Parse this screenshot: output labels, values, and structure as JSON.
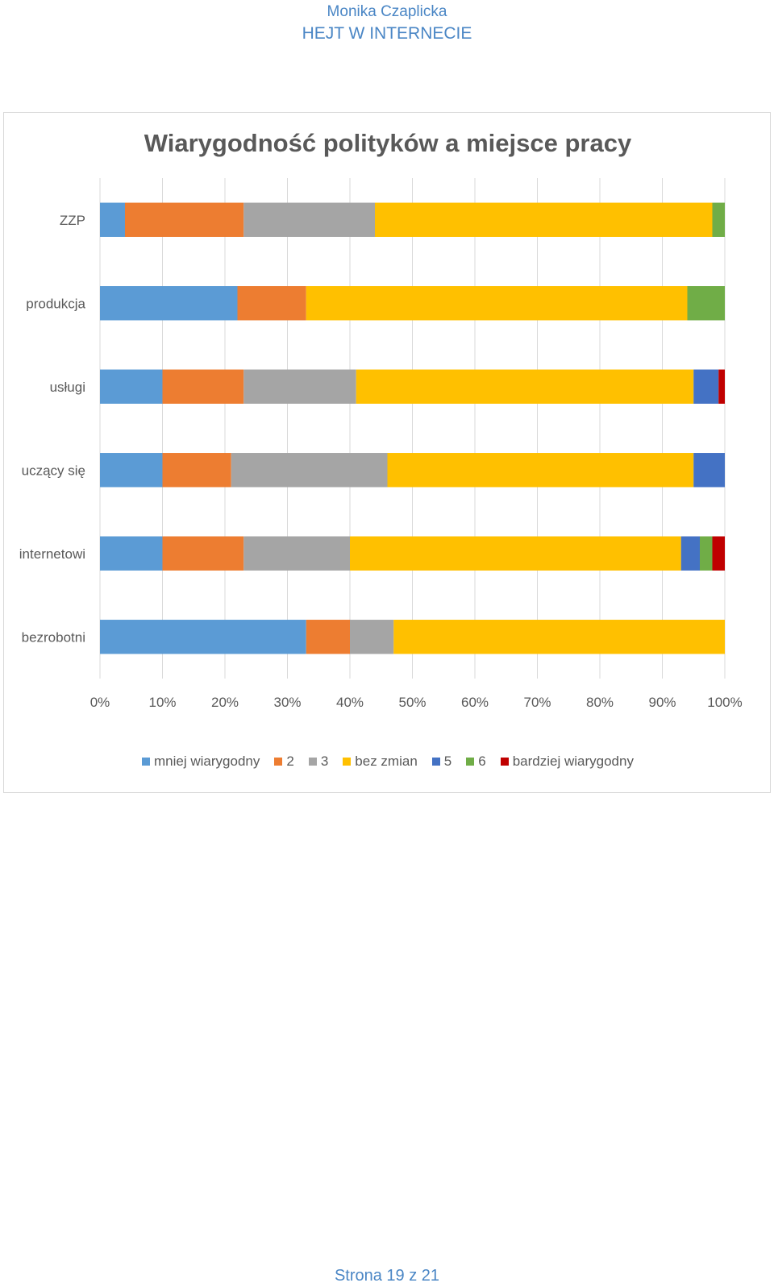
{
  "header": {
    "author": "Monika Czaplicka",
    "doc_title": "HEJT W INTERNECIE"
  },
  "footer": {
    "page": "Strona 19 z 21"
  },
  "colors": {
    "mniej wiarygodny": "#5b9bd5",
    "2": "#ed7d31",
    "3": "#a5a5a5",
    "bez zmian": "#ffc000",
    "5": "#4472c4",
    "6": "#70ad47",
    "bardziej wiarygodny": "#c00000"
  },
  "chart_data": {
    "type": "bar",
    "orientation": "horizontal",
    "stacked": "percent",
    "title": "Wiarygodność polityków a miejsce pracy",
    "categories": [
      "ZZP",
      "produkcja",
      "usługi",
      "uczący się",
      "internetowi",
      "bezrobotni"
    ],
    "xticks": [
      "0%",
      "10%",
      "20%",
      "30%",
      "40%",
      "50%",
      "60%",
      "70%",
      "80%",
      "90%",
      "100%"
    ],
    "xlim": [
      0,
      100
    ],
    "grid": true,
    "legend": "bottom",
    "series": [
      {
        "name": "mniej wiarygodny",
        "values": [
          4,
          22,
          10,
          10,
          10,
          33
        ]
      },
      {
        "name": "2",
        "values": [
          19,
          11,
          13,
          11,
          13,
          7
        ]
      },
      {
        "name": "3",
        "values": [
          21,
          0,
          18,
          25,
          17,
          7
        ]
      },
      {
        "name": "bez zmian",
        "values": [
          54,
          61,
          54,
          49,
          53,
          53
        ]
      },
      {
        "name": "5",
        "values": [
          0,
          0,
          4,
          5,
          3,
          0
        ]
      },
      {
        "name": "6",
        "values": [
          2,
          6,
          0,
          0,
          2,
          0
        ]
      },
      {
        "name": "bardziej wiarygodny",
        "values": [
          0,
          0,
          1,
          0,
          2,
          0
        ]
      }
    ]
  }
}
